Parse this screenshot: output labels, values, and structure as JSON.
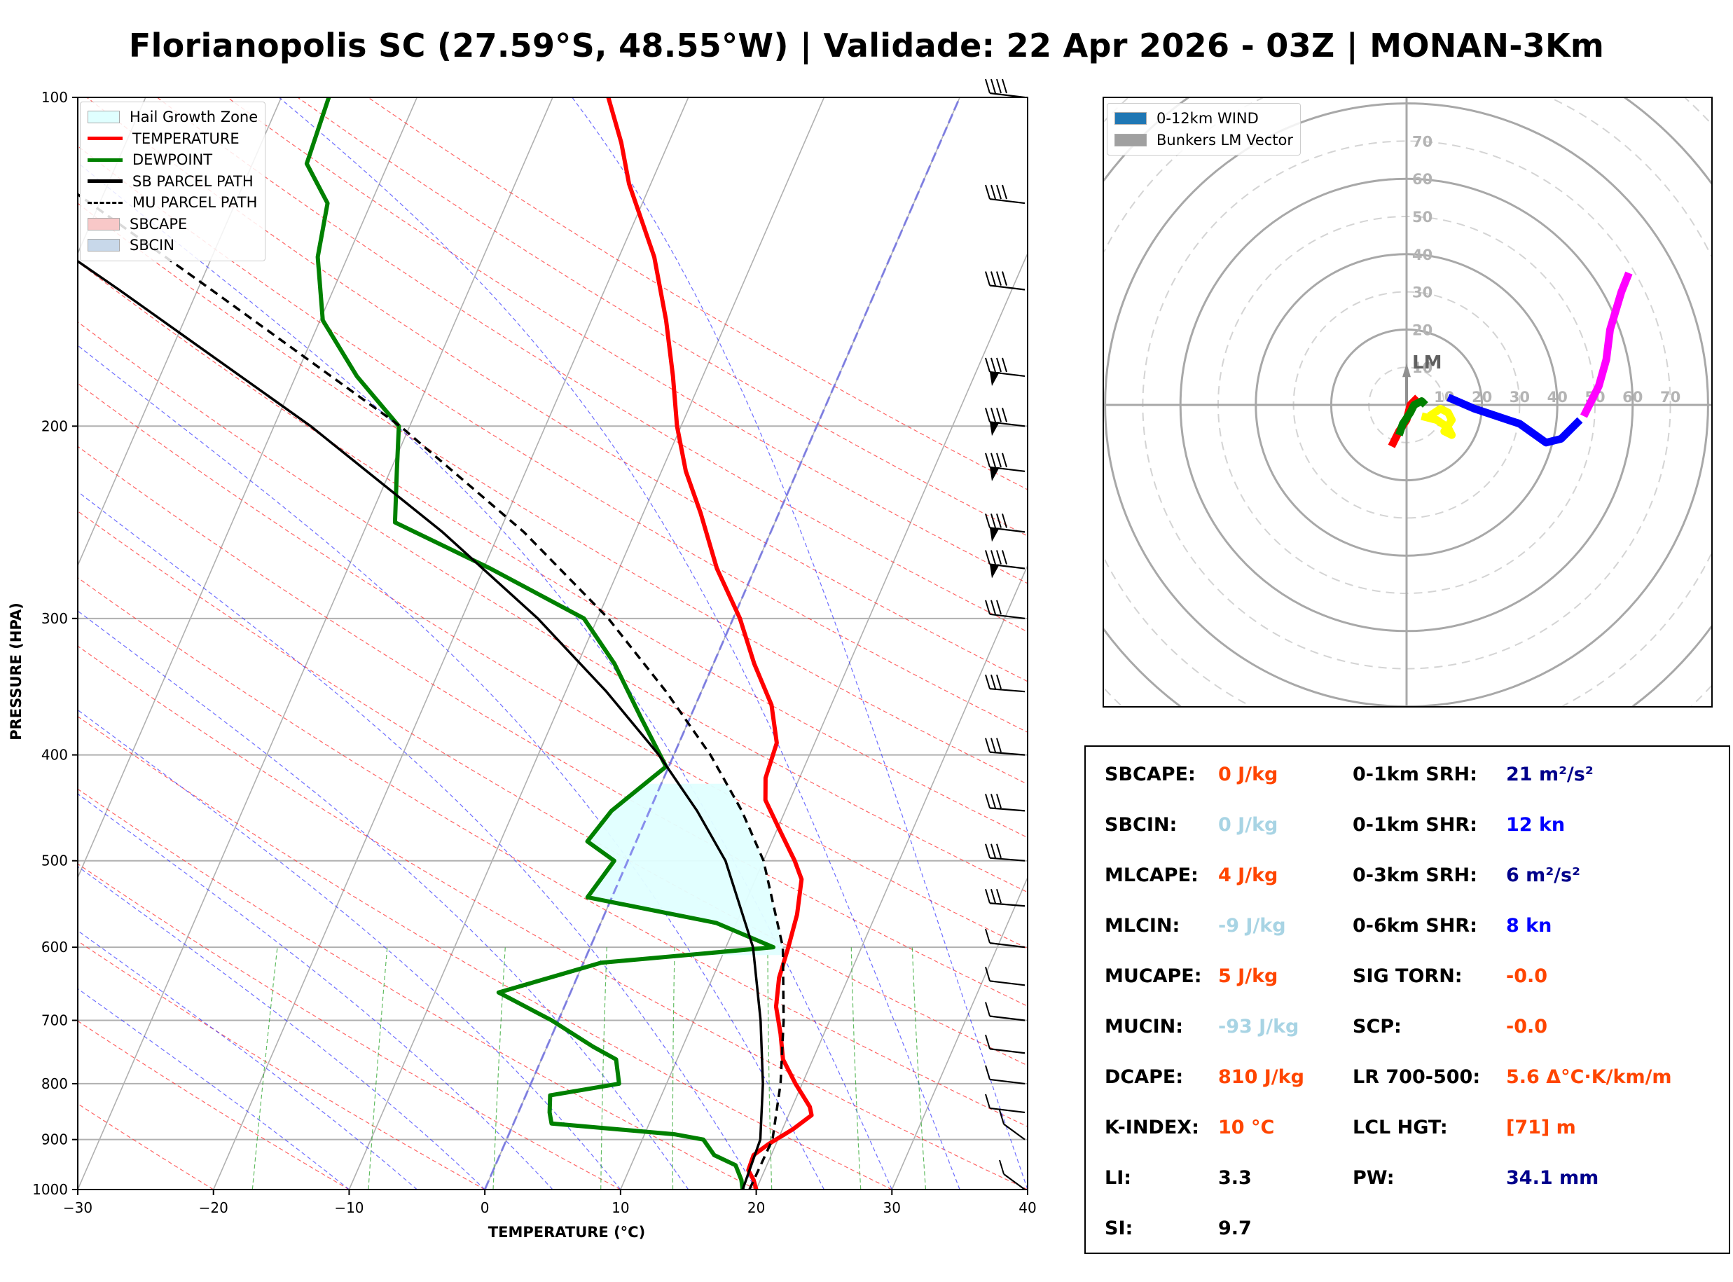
{
  "title": "Florianopolis SC (27.59°S, 48.55°W) | Validade: 22 Apr 2026 - 03Z | MONAN-3Km",
  "chart_data": [
    {
      "type": "line",
      "name": "skewt",
      "xlabel": "TEMPERATURE (°C)",
      "ylabel": "PRESSURE (HPA)",
      "xlim": [
        -30,
        40
      ],
      "ylim": [
        1000,
        100
      ],
      "y_scale": "log",
      "x_ticks": [
        "−30",
        "−20",
        "−10",
        "0",
        "10",
        "20",
        "30",
        "40"
      ],
      "y_ticks": [
        "1000",
        "900",
        "800",
        "700",
        "600",
        "500",
        "400",
        "300",
        "200",
        "100"
      ],
      "legend": {
        "position": "top-left",
        "entries": [
          {
            "label": "Hail Growth Zone",
            "color": "#e0ffff",
            "style": "fill"
          },
          {
            "label": "TEMPERATURE",
            "color": "#ff0000",
            "style": "line"
          },
          {
            "label": "DEWPOINT",
            "color": "#008000",
            "style": "line"
          },
          {
            "label": "SB PARCEL PATH",
            "color": "#000000",
            "style": "line"
          },
          {
            "label": "MU PARCEL PATH",
            "color": "#000000",
            "style": "dashed"
          },
          {
            "label": "SBCAPE",
            "color": "#f8c8c8",
            "style": "fill"
          },
          {
            "label": "SBCIN",
            "color": "#c8d8ea",
            "style": "fill"
          }
        ]
      },
      "series": [
        {
          "name": "TEMPERATURE",
          "color": "#ff0000",
          "points": [
            [
              1000,
              20.0
            ],
            [
              980,
              19.5
            ],
            [
              960,
              18.8
            ],
            [
              930,
              18.7
            ],
            [
              910,
              19.4
            ],
            [
              880,
              20.8
            ],
            [
              855,
              21.7
            ],
            [
              840,
              21.3
            ],
            [
              800,
              19.5
            ],
            [
              760,
              17.8
            ],
            [
              720,
              16.8
            ],
            [
              680,
              15.6
            ],
            [
              640,
              14.9
            ],
            [
              600,
              14.6
            ],
            [
              560,
              14.2
            ],
            [
              520,
              13.4
            ],
            [
              500,
              12.3
            ],
            [
              470,
              10.3
            ],
            [
              440,
              8.2
            ],
            [
              420,
              7.5
            ],
            [
              390,
              7.2
            ],
            [
              360,
              5.6
            ],
            [
              330,
              3.0
            ],
            [
              300,
              0.5
            ],
            [
              270,
              -2.8
            ],
            [
              240,
              -5.8
            ],
            [
              220,
              -8.2
            ],
            [
              200,
              -10.3
            ],
            [
              180,
              -12.2
            ],
            [
              160,
              -14.5
            ],
            [
              140,
              -17.4
            ],
            [
              120,
              -21.6
            ],
            [
              110,
              -23.5
            ],
            [
              100,
              -25.9
            ]
          ]
        },
        {
          "name": "DEWPOINT",
          "color": "#008000",
          "points": [
            [
              1000,
              19.0
            ],
            [
              980,
              18.6
            ],
            [
              950,
              17.7
            ],
            [
              930,
              15.8
            ],
            [
              900,
              14.5
            ],
            [
              890,
              12.2
            ],
            [
              870,
              2.8
            ],
            [
              850,
              2.3
            ],
            [
              820,
              1.8
            ],
            [
              800,
              6.5
            ],
            [
              760,
              5.5
            ],
            [
              740,
              3.4
            ],
            [
              700,
              -0.5
            ],
            [
              660,
              -5.3
            ],
            [
              620,
              1.3
            ],
            [
              600,
              13.5
            ],
            [
              570,
              8.5
            ],
            [
              540,
              -1.8
            ],
            [
              500,
              -1.0
            ],
            [
              480,
              -3.6
            ],
            [
              450,
              -2.8
            ],
            [
              410,
              -0.2
            ],
            [
              370,
              -3.6
            ],
            [
              330,
              -7.3
            ],
            [
              300,
              -11.0
            ],
            [
              270,
              -19.5
            ],
            [
              245,
              -28.0
            ],
            [
              220,
              -29.5
            ],
            [
              200,
              -30.8
            ],
            [
              180,
              -35.5
            ],
            [
              160,
              -39.8
            ],
            [
              140,
              -42.2
            ],
            [
              125,
              -43.2
            ],
            [
              115,
              -46.0
            ],
            [
              100,
              -46.5
            ]
          ]
        },
        {
          "name": "SB PARCEL PATH",
          "color": "#000000",
          "dash": "none",
          "points": [
            [
              1000,
              19.0
            ],
            [
              900,
              18.7
            ],
            [
              800,
              17.1
            ],
            [
              700,
              14.9
            ],
            [
              600,
              12.0
            ],
            [
              500,
              7.2
            ],
            [
              450,
              3.5
            ],
            [
              400,
              -1.1
            ],
            [
              350,
              -7.0
            ],
            [
              300,
              -14.4
            ],
            [
              250,
              -24.2
            ],
            [
              200,
              -37.3
            ],
            [
              150,
              -55.8
            ],
            [
              100,
              -82.5
            ]
          ]
        },
        {
          "name": "MU PARCEL PATH",
          "color": "#000000",
          "dash": "12,8",
          "points": [
            [
              1000,
              19.5
            ],
            [
              900,
              19.6
            ],
            [
              800,
              18.4
            ],
            [
              700,
              16.6
            ],
            [
              600,
              14.2
            ],
            [
              500,
              10.0
            ],
            [
              450,
              6.8
            ],
            [
              400,
              2.7
            ],
            [
              350,
              -2.6
            ],
            [
              300,
              -9.2
            ],
            [
              250,
              -18.2
            ],
            [
              200,
              -30.7
            ],
            [
              150,
              -49.0
            ],
            [
              100,
              -75.0
            ]
          ]
        }
      ],
      "wind_barbs_pressure_hpa": [
        1000,
        900,
        850,
        800,
        750,
        700,
        650,
        600,
        550,
        500,
        450,
        400,
        350,
        300,
        270,
        250,
        220,
        200,
        180,
        150,
        125,
        100
      ]
    },
    {
      "type": "line",
      "name": "hodograph",
      "r_ticks": [
        "10",
        "20",
        "30",
        "40",
        "50",
        "60",
        "70"
      ],
      "x_ticks": [
        "10",
        "20",
        "30",
        "40",
        "50",
        "60",
        "70"
      ],
      "legend": {
        "position": "top-left",
        "entries": [
          {
            "label": "0-12km WIND",
            "color": "#1f77b4",
            "style": "fill"
          },
          {
            "label": "Bunkers LM Vector",
            "color": "#a0a0a0",
            "style": "fill"
          }
        ]
      },
      "vector_label": "LM",
      "bunkers_lm": [
        0,
        10
      ],
      "segments": [
        {
          "color": "#ff0000",
          "points": [
            [
              -4,
              -11
            ],
            [
              -2,
              -7
            ],
            [
              0,
              -4
            ],
            [
              1,
              0
            ],
            [
              3,
              2
            ]
          ]
        },
        {
          "color": "#008000",
          "points": [
            [
              -2,
              -8
            ],
            [
              -1,
              -5
            ],
            [
              1,
              -2
            ],
            [
              2,
              0
            ],
            [
              4,
              1
            ],
            [
              5,
              0
            ]
          ]
        },
        {
          "color": "#ffff00",
          "points": [
            [
              4,
              -3
            ],
            [
              8,
              -4
            ],
            [
              11,
              -6
            ],
            [
              12,
              -8
            ],
            [
              10,
              -7
            ],
            [
              12,
              -4
            ],
            [
              11,
              -2
            ],
            [
              9,
              -1
            ],
            [
              6,
              -3
            ]
          ]
        },
        {
          "color": "#0000ff",
          "points": [
            [
              11,
              2
            ],
            [
              18,
              -1
            ],
            [
              30,
              -5
            ],
            [
              37,
              -10
            ],
            [
              41,
              -9
            ],
            [
              46,
              -4
            ]
          ]
        },
        {
          "color": "#ff00ff",
          "points": [
            [
              47,
              -3
            ],
            [
              51,
              5
            ],
            [
              53,
              12
            ],
            [
              54,
              20
            ],
            [
              57,
              30
            ],
            [
              59,
              35
            ]
          ]
        }
      ]
    }
  ],
  "params": {
    "left": [
      {
        "label": "SBCAPE:",
        "value": "0 J/kg",
        "color": "#ff4500"
      },
      {
        "label": "SBCIN:",
        "value": "0 J/kg",
        "color": "#a8d4e4"
      },
      {
        "label": "MLCAPE:",
        "value": "4 J/kg",
        "color": "#ff4500"
      },
      {
        "label": "MLCIN:",
        "value": "-9 J/kg",
        "color": "#a8d4e4"
      },
      {
        "label": "MUCAPE:",
        "value": "5 J/kg",
        "color": "#ff4500"
      },
      {
        "label": "MUCIN:",
        "value": "-93 J/kg",
        "color": "#a8d4e4"
      },
      {
        "label": "DCAPE:",
        "value": "810 J/kg",
        "color": "#ff4500"
      },
      {
        "label": "K-INDEX:",
        "value": "10 °C",
        "color": "#ff4500"
      },
      {
        "label": "LI:",
        "value": "3.3",
        "color": "#000000"
      },
      {
        "label": "SI:",
        "value": "9.7",
        "color": "#000000"
      }
    ],
    "right": [
      {
        "label": "0-1km SRH:",
        "value": "21 m²/s²",
        "color": "#00008b"
      },
      {
        "label": "0-1km SHR:",
        "value": "12 kn",
        "color": "#0000ff"
      },
      {
        "label": "0-3km SRH:",
        "value": "6 m²/s²",
        "color": "#00008b"
      },
      {
        "label": "0-6km SHR:",
        "value": "8 kn",
        "color": "#0000ff"
      },
      {
        "label": "SIG TORN:",
        "value": "-0.0",
        "color": "#ff4500"
      },
      {
        "label": "SCP:",
        "value": "-0.0",
        "color": "#ff4500"
      },
      {
        "label": "LR 700-500:",
        "value": "5.6 Δ°C·K/km/m",
        "color": "#ff4500"
      },
      {
        "label": "LCL HGT:",
        "value": "[71] m",
        "color": "#ff4500"
      },
      {
        "label": "PW:",
        "value": "34.1 mm",
        "color": "#00008b"
      }
    ]
  }
}
